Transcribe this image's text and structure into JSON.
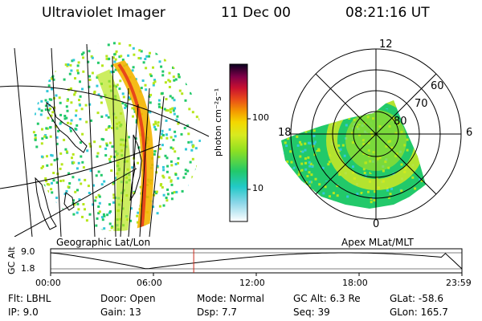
{
  "header": {
    "instrument": "Ultraviolet Imager",
    "date": "11 Dec 00",
    "time": "08:21:16 UT"
  },
  "geo_panel": {
    "label": "Geographic Lat/Lon"
  },
  "polar_panel": {
    "label": "Apex MLat/MLT",
    "mlt_labels": [
      "12",
      "18",
      "6",
      "0"
    ],
    "lat_labels": [
      "60",
      "70",
      "80"
    ]
  },
  "colorbar": {
    "unit_label": "photon cm⁻²s⁻¹",
    "ticks": [
      "100",
      "10"
    ]
  },
  "altitude_plot": {
    "axis_label": "GC Alt",
    "y_ticks": [
      "9.0",
      "1.8"
    ],
    "x_ticks": [
      "00:00",
      "06:00",
      "12:00",
      "18:00",
      "23:59"
    ],
    "marker_time": "08:21",
    "marker_color": "#cc2a1a"
  },
  "params": {
    "filter": "Flt: LBHL",
    "door": "Door: Open",
    "mode": "Mode: Normal",
    "gc_alt": "GC Alt: 6.3 Re",
    "glat": "GLat: -58.6",
    "ip": "IP: 9.0",
    "gain": "Gain: 13",
    "dsp": "Dsp:    7.7",
    "seq": "Seq: 39",
    "glon": "GLon: 165.7"
  },
  "colors": {
    "aurora_peak": "#e8481a",
    "aurora_high": "#f4b400",
    "aurora_mid": "#b6e61c",
    "aurora_low": "#22c96a",
    "aurora_faint": "#31c8d8"
  }
}
